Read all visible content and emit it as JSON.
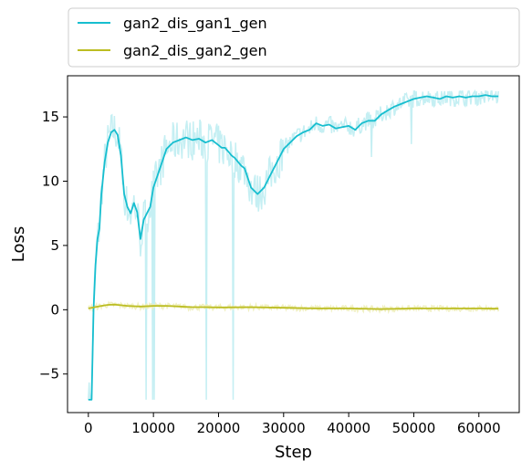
{
  "chart_data": {
    "type": "line",
    "title": "",
    "xlabel": "Step",
    "ylabel": "Loss",
    "xlim": [
      -3200,
      66200
    ],
    "ylim": [
      -8.0,
      18.2
    ],
    "xticks": [
      0,
      10000,
      20000,
      30000,
      40000,
      50000,
      60000
    ],
    "xtick_labels": [
      "0",
      "10000",
      "20000",
      "30000",
      "40000",
      "50000",
      "60000"
    ],
    "yticks": [
      -5,
      0,
      5,
      10,
      15
    ],
    "ytick_labels": [
      "−5",
      "0",
      "5",
      "10",
      "15"
    ],
    "grid": false,
    "legend": {
      "position": "top-outside",
      "columns": 1
    },
    "series": [
      {
        "name": "gan2_dis_gan1_gen",
        "color": "#17becf",
        "raw_color": "#c5eff3",
        "x": [
          0,
          500,
          800,
          1100,
          1400,
          1700,
          2000,
          2500,
          3000,
          3500,
          4000,
          4500,
          5000,
          5500,
          6000,
          6500,
          7000,
          7500,
          8000,
          8500,
          9000,
          9500,
          10000,
          11000,
          12000,
          13000,
          14000,
          15000,
          16000,
          17000,
          18000,
          19000,
          20000,
          20500,
          21000,
          21500,
          22000,
          22500,
          23000,
          23500,
          24000,
          25000,
          26000,
          27000,
          28000,
          29000,
          30000,
          31000,
          32000,
          33000,
          34000,
          35000,
          36000,
          37000,
          38000,
          39000,
          40000,
          41000,
          42000,
          43000,
          44000,
          45000,
          46000,
          47000,
          48000,
          49000,
          50000,
          51000,
          52000,
          53000,
          54000,
          55000,
          56000,
          57000,
          58000,
          59000,
          60000,
          61000,
          62000,
          63000
        ],
        "values": [
          -7.0,
          -7.0,
          0.0,
          3.5,
          5.5,
          6.3,
          9.0,
          11.5,
          13.0,
          13.8,
          14.0,
          13.6,
          12.0,
          9.0,
          8.0,
          7.5,
          8.3,
          7.6,
          5.5,
          7.0,
          7.5,
          8.0,
          9.5,
          11.0,
          12.5,
          13.0,
          13.2,
          13.4,
          13.2,
          13.3,
          13.0,
          13.2,
          12.8,
          12.6,
          12.6,
          12.3,
          12.0,
          11.8,
          11.5,
          11.2,
          11.0,
          9.5,
          9.0,
          9.5,
          10.5,
          11.5,
          12.5,
          13.0,
          13.5,
          13.8,
          14.0,
          14.5,
          14.3,
          14.4,
          14.1,
          14.2,
          14.3,
          14.0,
          14.5,
          14.7,
          14.7,
          15.2,
          15.5,
          15.8,
          16.0,
          16.2,
          16.4,
          16.5,
          16.6,
          16.5,
          16.4,
          16.6,
          16.5,
          16.6,
          16.5,
          16.6,
          16.6,
          16.7,
          16.6,
          16.6
        ]
      },
      {
        "name": "gan2_dis_gan2_gen",
        "color": "#bcbd22",
        "raw_color": "#f0f0c0",
        "x": [
          0,
          1000,
          2000,
          3000,
          4000,
          5000,
          6000,
          8000,
          10000,
          12000,
          14000,
          16000,
          18000,
          20000,
          25000,
          30000,
          35000,
          40000,
          45000,
          50000,
          55000,
          60000,
          63000
        ],
        "values": [
          0.1,
          0.2,
          0.3,
          0.38,
          0.4,
          0.35,
          0.3,
          0.25,
          0.3,
          0.3,
          0.25,
          0.2,
          0.2,
          0.18,
          0.2,
          0.15,
          0.1,
          0.1,
          0.05,
          0.1,
          0.1,
          0.1,
          0.08
        ]
      }
    ]
  }
}
